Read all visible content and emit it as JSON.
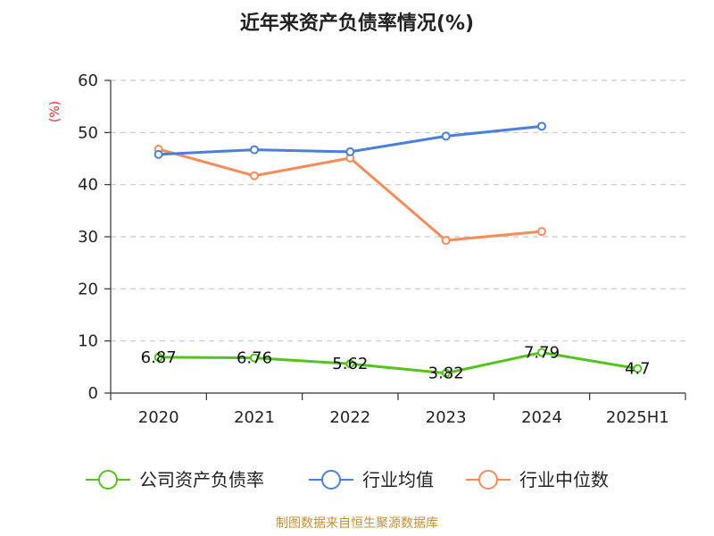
{
  "chart_data": {
    "type": "line",
    "title": "近年来资产负债率情况(%)",
    "ylabel": "(%)",
    "categories": [
      "2020",
      "2021",
      "2022",
      "2023",
      "2024",
      "2025H1"
    ],
    "ylim": [
      0,
      60
    ],
    "yticks": [
      0,
      10,
      20,
      30,
      40,
      50,
      60
    ],
    "grid": true,
    "legend_position": "bottom",
    "series": [
      {
        "name": "公司资产负债率",
        "color": "#52c41a",
        "values": [
          6.87,
          6.76,
          5.62,
          3.82,
          7.79,
          4.7
        ],
        "labels": [
          "6.87",
          "6.76",
          "5.62",
          "3.82",
          "7.79",
          "4.7"
        ]
      },
      {
        "name": "行业均值",
        "color": "#4a7fdc",
        "values": [
          45.8,
          46.7,
          46.3,
          49.3,
          51.2,
          null
        ]
      },
      {
        "name": "行业中位数",
        "color": "#f58c5a",
        "values": [
          46.8,
          41.7,
          45.1,
          29.3,
          31.0,
          null
        ]
      }
    ]
  },
  "source": "制图数据来自恒生聚源数据库"
}
